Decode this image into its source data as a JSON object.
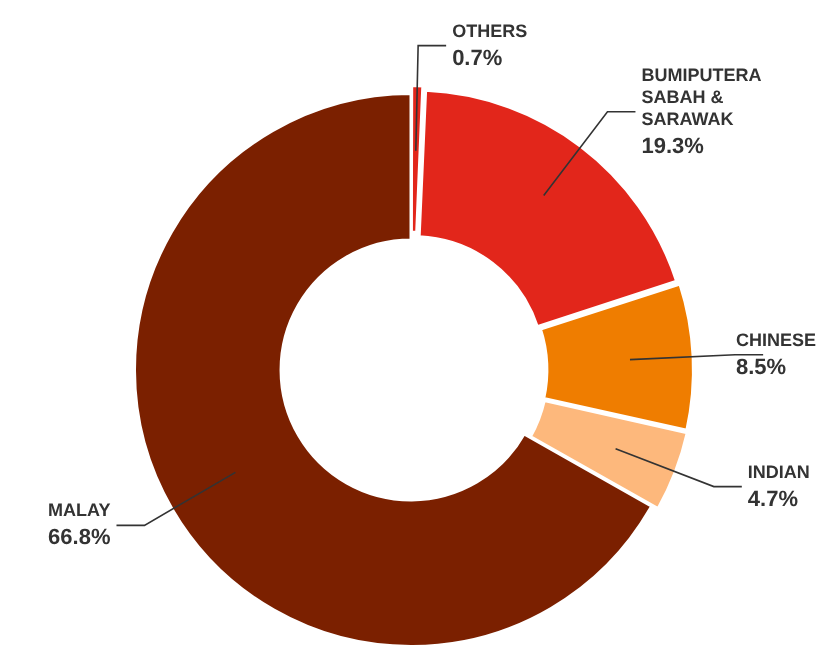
{
  "chart_data": {
    "type": "donut",
    "categories": [
      "OTHERS",
      "BUMIPUTERA SABAH & SARAWAK",
      "CHINESE",
      "INDIAN",
      "MALAY"
    ],
    "values": [
      0.7,
      19.3,
      8.5,
      4.7,
      66.8
    ],
    "value_labels": [
      "0.7%",
      "19.3%",
      "8.5%",
      "4.7%",
      "66.8%"
    ],
    "colors": [
      "#e2261b",
      "#e2261b",
      "#ef7d00",
      "#fdb87c",
      "#7b2000"
    ],
    "legend": false
  }
}
